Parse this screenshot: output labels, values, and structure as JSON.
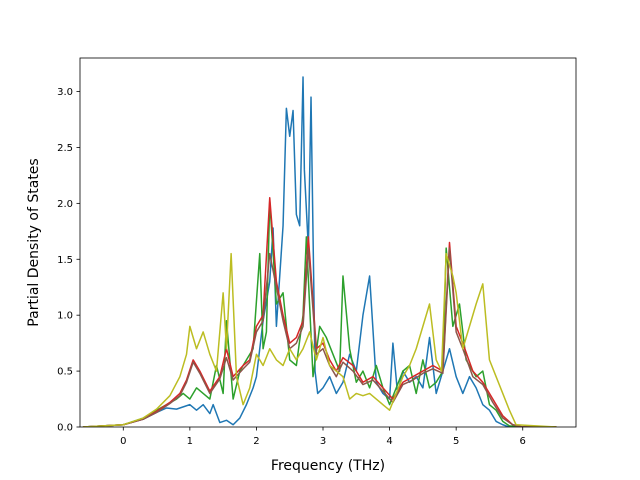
{
  "chart_data": {
    "type": "line",
    "title": "",
    "xlabel": "Frequency (THz)",
    "ylabel": "Partial Density of States",
    "xlim": [
      -0.65,
      6.8
    ],
    "ylim": [
      0.0,
      3.3
    ],
    "xticks": [
      0,
      1,
      2,
      3,
      4,
      5,
      6
    ],
    "yticks": [
      0.0,
      0.5,
      1.0,
      1.5,
      2.0,
      2.5,
      3.0
    ],
    "xtick_labels": [
      "0",
      "1",
      "2",
      "3",
      "4",
      "5",
      "6"
    ],
    "ytick_labels": [
      "0.0",
      "0.5",
      "1.0",
      "1.5",
      "2.0",
      "2.5",
      "3.0"
    ],
    "grid": false,
    "legend": "none",
    "series": [
      {
        "color": "#1f77b4",
        "x": [
          -0.6,
          0,
          0.3,
          0.5,
          0.65,
          0.8,
          1.0,
          1.1,
          1.2,
          1.3,
          1.35,
          1.45,
          1.55,
          1.65,
          1.75,
          1.85,
          1.95,
          2.0,
          2.1,
          2.2,
          2.25,
          2.3,
          2.4,
          2.45,
          2.5,
          2.55,
          2.6,
          2.65,
          2.7,
          2.72,
          2.78,
          2.82,
          2.88,
          2.92,
          3.0,
          3.1,
          3.2,
          3.3,
          3.4,
          3.5,
          3.6,
          3.7,
          3.8,
          3.9,
          4.0,
          4.05,
          4.12,
          4.2,
          4.3,
          4.4,
          4.5,
          4.6,
          4.7,
          4.8,
          4.9,
          5.0,
          5.1,
          5.2,
          5.3,
          5.4,
          5.5,
          5.6,
          5.7,
          5.8,
          6.0,
          6.5
        ],
        "y": [
          0,
          0.02,
          0.07,
          0.13,
          0.17,
          0.16,
          0.2,
          0.15,
          0.2,
          0.12,
          0.2,
          0.04,
          0.06,
          0.02,
          0.08,
          0.2,
          0.35,
          0.45,
          0.95,
          1.3,
          1.78,
          0.9,
          1.8,
          2.85,
          2.6,
          2.83,
          1.9,
          1.8,
          3.13,
          2.3,
          1.6,
          2.95,
          0.5,
          0.3,
          0.35,
          0.45,
          0.3,
          0.4,
          0.65,
          0.5,
          1.0,
          1.35,
          0.4,
          0.3,
          0.25,
          0.75,
          0.3,
          0.5,
          0.4,
          0.45,
          0.35,
          0.8,
          0.3,
          0.5,
          0.7,
          0.45,
          0.3,
          0.45,
          0.35,
          0.2,
          0.15,
          0.05,
          0.02,
          0,
          0,
          0
        ]
      },
      {
        "color": "#2ca02c",
        "x": [
          -0.6,
          0,
          0.3,
          0.5,
          0.65,
          0.8,
          0.9,
          1.0,
          1.1,
          1.2,
          1.3,
          1.4,
          1.5,
          1.55,
          1.65,
          1.75,
          1.85,
          1.95,
          2.05,
          2.1,
          2.15,
          2.2,
          2.3,
          2.4,
          2.5,
          2.6,
          2.7,
          2.75,
          2.85,
          2.95,
          3.05,
          3.15,
          3.25,
          3.3,
          3.4,
          3.5,
          3.6,
          3.7,
          3.8,
          3.9,
          4.0,
          4.1,
          4.2,
          4.3,
          4.4,
          4.5,
          4.6,
          4.7,
          4.8,
          4.85,
          4.95,
          5.05,
          5.15,
          5.3,
          5.4,
          5.5,
          5.6,
          5.7,
          5.8,
          6.0,
          6.5
        ],
        "y": [
          0,
          0.02,
          0.08,
          0.15,
          0.2,
          0.25,
          0.3,
          0.25,
          0.35,
          0.3,
          0.25,
          0.55,
          0.3,
          0.95,
          0.25,
          0.5,
          0.6,
          0.7,
          1.55,
          0.7,
          0.85,
          2.02,
          1.1,
          1.2,
          0.6,
          0.55,
          1.0,
          1.7,
          0.45,
          0.9,
          0.8,
          0.65,
          0.5,
          1.35,
          0.7,
          0.4,
          0.5,
          0.35,
          0.55,
          0.35,
          0.2,
          0.35,
          0.5,
          0.55,
          0.3,
          0.6,
          0.35,
          0.4,
          0.5,
          1.6,
          0.9,
          1.1,
          0.6,
          0.45,
          0.5,
          0.2,
          0.15,
          0.05,
          0.01,
          0,
          0
        ]
      },
      {
        "color": "#d62728",
        "x": [
          -0.6,
          0,
          0.3,
          0.5,
          0.7,
          0.85,
          0.95,
          1.05,
          1.15,
          1.3,
          1.45,
          1.55,
          1.65,
          1.8,
          1.9,
          2.0,
          2.1,
          2.2,
          2.3,
          2.4,
          2.5,
          2.6,
          2.7,
          2.78,
          2.9,
          3.0,
          3.1,
          3.2,
          3.3,
          3.45,
          3.6,
          3.75,
          3.9,
          4.05,
          4.2,
          4.35,
          4.5,
          4.65,
          4.8,
          4.9,
          5.0,
          5.1,
          5.25,
          5.4,
          5.55,
          5.7,
          5.85,
          6.0,
          6.5
        ],
        "y": [
          0,
          0.02,
          0.07,
          0.14,
          0.22,
          0.3,
          0.42,
          0.6,
          0.5,
          0.32,
          0.45,
          0.7,
          0.45,
          0.55,
          0.6,
          0.9,
          1.0,
          2.05,
          1.3,
          1.0,
          0.75,
          0.8,
          0.95,
          1.7,
          0.7,
          0.75,
          0.6,
          0.5,
          0.62,
          0.55,
          0.4,
          0.45,
          0.35,
          0.25,
          0.4,
          0.45,
          0.5,
          0.55,
          0.5,
          1.65,
          0.9,
          0.75,
          0.5,
          0.4,
          0.25,
          0.1,
          0.02,
          0,
          0
        ]
      },
      {
        "color": "#8c564b",
        "x": [
          -0.6,
          0,
          0.3,
          0.5,
          0.7,
          0.85,
          0.95,
          1.05,
          1.15,
          1.3,
          1.45,
          1.55,
          1.65,
          1.8,
          1.9,
          2.0,
          2.1,
          2.2,
          2.3,
          2.4,
          2.5,
          2.6,
          2.7,
          2.78,
          2.9,
          3.0,
          3.1,
          3.2,
          3.3,
          3.45,
          3.6,
          3.75,
          3.9,
          4.05,
          4.2,
          4.35,
          4.5,
          4.65,
          4.8,
          4.9,
          5.0,
          5.1,
          5.25,
          5.4,
          5.55,
          5.7,
          5.85,
          6.0,
          6.5
        ],
        "y": [
          0,
          0.02,
          0.07,
          0.13,
          0.21,
          0.28,
          0.4,
          0.58,
          0.48,
          0.3,
          0.43,
          0.62,
          0.42,
          0.52,
          0.58,
          0.85,
          0.95,
          1.55,
          1.25,
          0.95,
          0.7,
          0.75,
          0.9,
          1.6,
          0.65,
          0.7,
          0.55,
          0.45,
          0.58,
          0.5,
          0.38,
          0.42,
          0.32,
          0.22,
          0.38,
          0.42,
          0.48,
          0.52,
          0.48,
          1.6,
          0.85,
          0.7,
          0.45,
          0.38,
          0.22,
          0.08,
          0.02,
          0,
          0
        ]
      },
      {
        "color": "#bcbd22",
        "x": [
          -0.6,
          0,
          0.3,
          0.5,
          0.7,
          0.85,
          0.95,
          1.0,
          1.1,
          1.2,
          1.3,
          1.4,
          1.5,
          1.55,
          1.62,
          1.7,
          1.8,
          1.9,
          2.0,
          2.1,
          2.2,
          2.3,
          2.4,
          2.5,
          2.6,
          2.7,
          2.8,
          2.9,
          3.0,
          3.1,
          3.2,
          3.3,
          3.4,
          3.5,
          3.6,
          3.7,
          3.8,
          3.9,
          4.0,
          4.1,
          4.2,
          4.3,
          4.4,
          4.5,
          4.6,
          4.7,
          4.78,
          4.85,
          4.95,
          5.0,
          5.1,
          5.2,
          5.3,
          5.4,
          5.5,
          5.6,
          5.7,
          5.8,
          5.9,
          6.5
        ],
        "y": [
          0,
          0.02,
          0.08,
          0.16,
          0.28,
          0.45,
          0.65,
          0.9,
          0.7,
          0.85,
          0.65,
          0.5,
          1.2,
          0.7,
          1.55,
          0.45,
          0.2,
          0.35,
          0.65,
          0.55,
          0.7,
          0.6,
          0.55,
          0.7,
          0.6,
          0.7,
          0.85,
          0.6,
          0.8,
          0.55,
          0.5,
          0.45,
          0.25,
          0.3,
          0.28,
          0.3,
          0.25,
          0.2,
          0.15,
          0.3,
          0.45,
          0.55,
          0.7,
          0.9,
          1.1,
          0.6,
          0.5,
          1.55,
          1.35,
          1.2,
          0.7,
          0.9,
          1.1,
          1.28,
          0.6,
          0.45,
          0.3,
          0.15,
          0.02,
          0
        ]
      }
    ]
  }
}
